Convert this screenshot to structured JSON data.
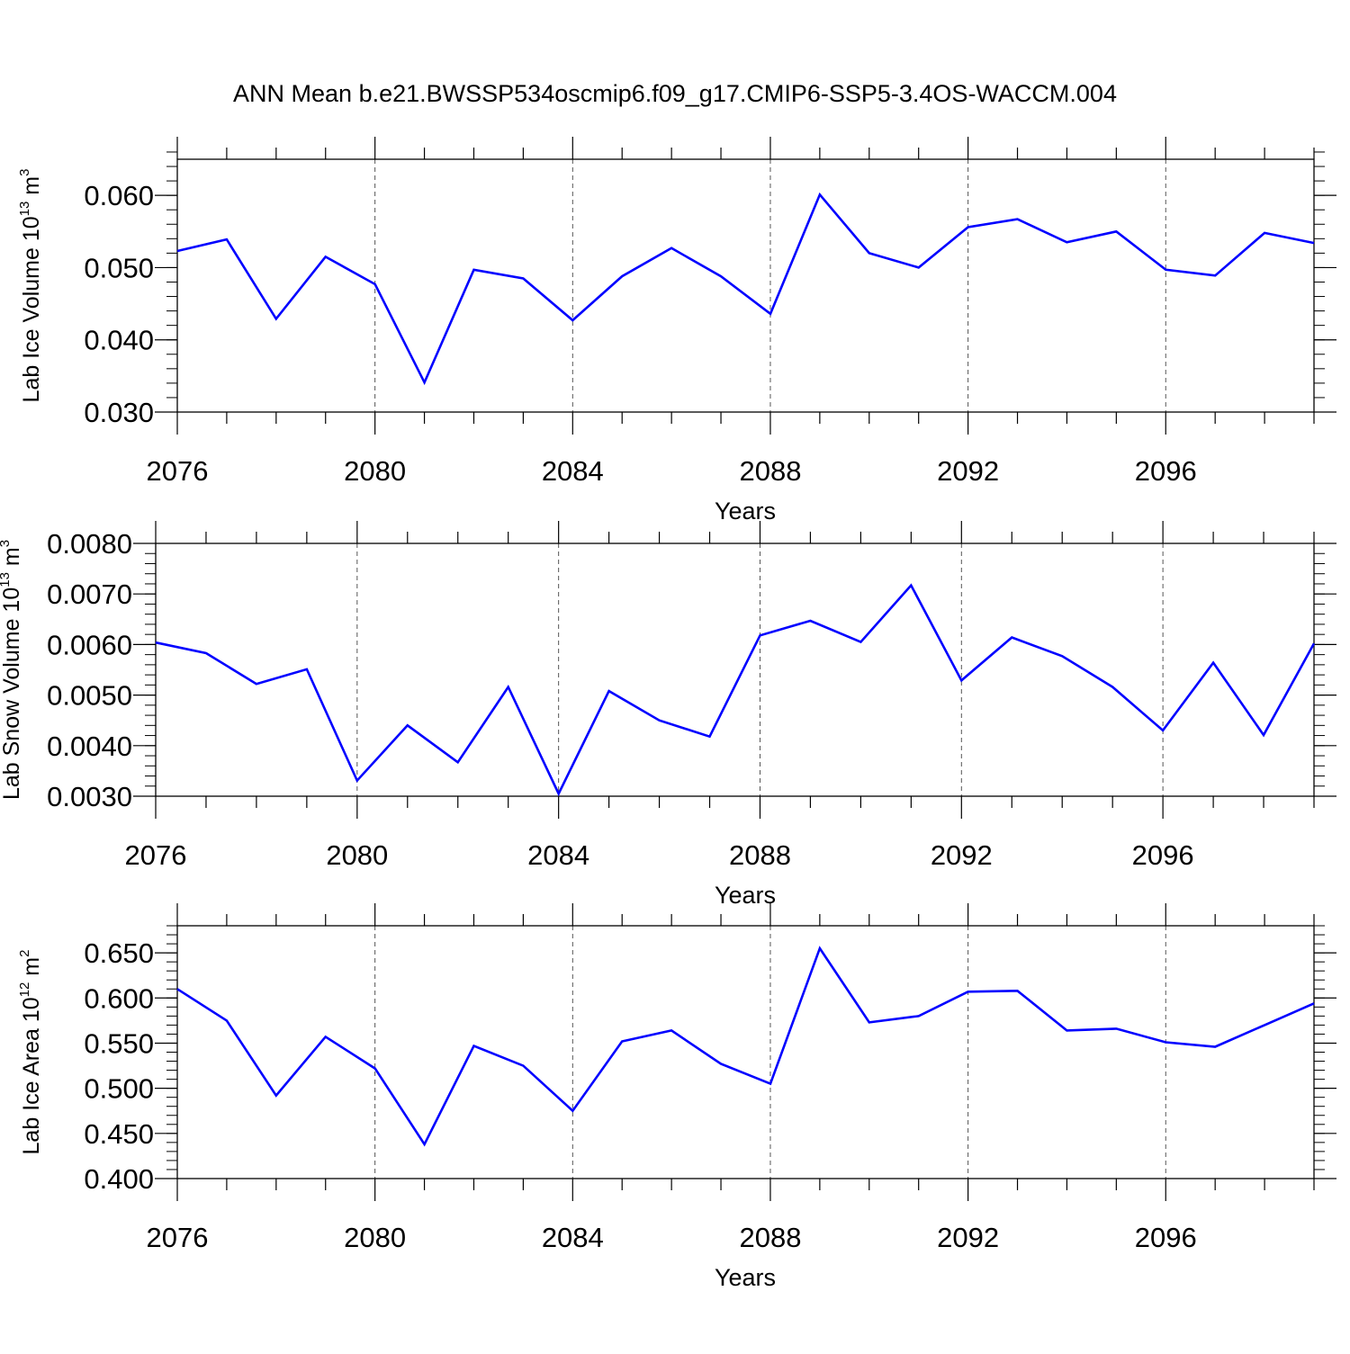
{
  "title": "ANN Mean b.e21.BWSSP534oscmip6.f09_g17.CMIP6-SSP5-3.4OS-WACCM.004",
  "chart_data": [
    {
      "type": "line",
      "title": "",
      "xlabel": "Years",
      "ylabel": "Lab Ice Volume 10",
      "ylabel_exp": "13",
      "ylabel_unit": " m",
      "ylabel_unit_exp": "3",
      "xlim": [
        2076,
        2099
      ],
      "ylim": [
        0.03,
        0.065
      ],
      "yticks": [
        0.03,
        0.04,
        0.05,
        0.06
      ],
      "ytick_labels": [
        "0.030",
        "0.040",
        "0.050",
        "0.060"
      ],
      "yminor_step": 0.002,
      "xticks": [
        2076,
        2080,
        2084,
        2088,
        2092,
        2096
      ],
      "xtick_labels": [
        "2076",
        "2080",
        "2084",
        "2088",
        "2092",
        "2096"
      ],
      "line_color": "#0000ff",
      "x": [
        2076,
        2077,
        2078,
        2079,
        2080,
        2081,
        2082,
        2083,
        2084,
        2085,
        2086,
        2087,
        2088,
        2089,
        2090,
        2091,
        2092,
        2093,
        2094,
        2095,
        2096,
        2097,
        2098,
        2099
      ],
      "values": [
        0.0523,
        0.0539,
        0.0429,
        0.0515,
        0.0477,
        0.0341,
        0.0497,
        0.0485,
        0.0427,
        0.0488,
        0.0527,
        0.0488,
        0.0436,
        0.0601,
        0.052,
        0.05,
        0.0556,
        0.0567,
        0.0535,
        0.055,
        0.0497,
        0.0489,
        0.0548,
        0.0534
      ]
    },
    {
      "type": "line",
      "title": "",
      "xlabel": "Years",
      "ylabel": "Lab Snow Volume 10",
      "ylabel_exp": "13",
      "ylabel_unit": " m",
      "ylabel_unit_exp": "3",
      "xlim": [
        2076,
        2099
      ],
      "ylim": [
        0.003,
        0.008
      ],
      "yticks": [
        0.003,
        0.004,
        0.005,
        0.006,
        0.007,
        0.008
      ],
      "ytick_labels": [
        "0.0030",
        "0.0040",
        "0.0050",
        "0.0060",
        "0.0070",
        "0.0080"
      ],
      "yminor_step": 0.0002,
      "xticks": [
        2076,
        2080,
        2084,
        2088,
        2092,
        2096
      ],
      "xtick_labels": [
        "2076",
        "2080",
        "2084",
        "2088",
        "2092",
        "2096"
      ],
      "line_color": "#0000ff",
      "x": [
        2076,
        2077,
        2078,
        2079,
        2080,
        2081,
        2082,
        2083,
        2084,
        2085,
        2086,
        2087,
        2088,
        2089,
        2090,
        2091,
        2092,
        2093,
        2094,
        2095,
        2096,
        2097,
        2098,
        2099
      ],
      "values": [
        0.00604,
        0.00583,
        0.00522,
        0.00551,
        0.00331,
        0.0044,
        0.00367,
        0.00516,
        0.00305,
        0.00508,
        0.0045,
        0.00418,
        0.00618,
        0.00647,
        0.00605,
        0.00717,
        0.00529,
        0.00614,
        0.00577,
        0.00516,
        0.0043,
        0.00564,
        0.00421,
        0.00602
      ]
    },
    {
      "type": "line",
      "title": "",
      "xlabel": "Years",
      "ylabel": "Lab Ice Area 10",
      "ylabel_exp": "12",
      "ylabel_unit": " m",
      "ylabel_unit_exp": "2",
      "xlim": [
        2076,
        2099
      ],
      "ylim": [
        0.4,
        0.68
      ],
      "yticks": [
        0.4,
        0.45,
        0.5,
        0.55,
        0.6,
        0.65
      ],
      "ytick_labels": [
        "0.400",
        "0.450",
        "0.500",
        "0.550",
        "0.600",
        "0.650"
      ],
      "yminor_step": 0.01,
      "xticks": [
        2076,
        2080,
        2084,
        2088,
        2092,
        2096
      ],
      "xtick_labels": [
        "2076",
        "2080",
        "2084",
        "2088",
        "2092",
        "2096"
      ],
      "line_color": "#0000ff",
      "x": [
        2076,
        2077,
        2078,
        2079,
        2080,
        2081,
        2082,
        2083,
        2084,
        2085,
        2086,
        2087,
        2088,
        2089,
        2090,
        2091,
        2092,
        2093,
        2094,
        2095,
        2096,
        2097,
        2098,
        2099
      ],
      "values": [
        0.61,
        0.575,
        0.492,
        0.557,
        0.522,
        0.438,
        0.547,
        0.525,
        0.475,
        0.552,
        0.564,
        0.527,
        0.505,
        0.655,
        0.573,
        0.58,
        0.607,
        0.608,
        0.564,
        0.566,
        0.551,
        0.546,
        0.57,
        0.594
      ]
    }
  ]
}
